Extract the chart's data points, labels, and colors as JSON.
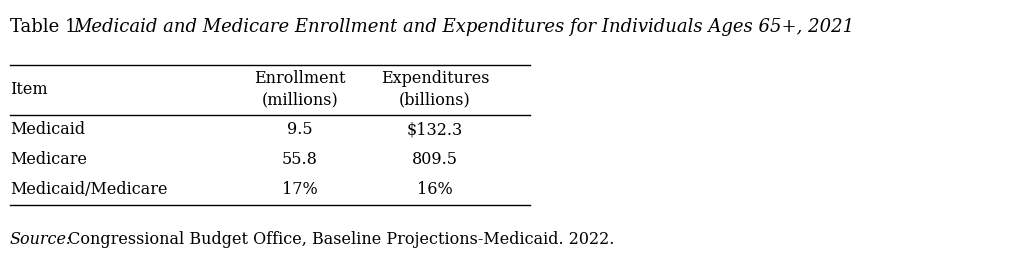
{
  "title_prefix": "Table 1. ",
  "title_italic": "Medicaid and Medicare Enrollment and Expenditures for Individuals Ages 65+, 2021",
  "rows": [
    [
      "Medicaid",
      "9.5",
      "$132.3"
    ],
    [
      "Medicare",
      "55.8",
      "809.5"
    ],
    [
      "Medicaid/Medicare",
      "17%",
      "16%"
    ]
  ],
  "source_italic": "Source:",
  "source_rest": " Congressional Budget Office, Baseline Projections-Medicaid. 2022.",
  "bg_color": "#ffffff",
  "text_color": "#000000",
  "font_size": 11.5,
  "title_font_size": 13
}
